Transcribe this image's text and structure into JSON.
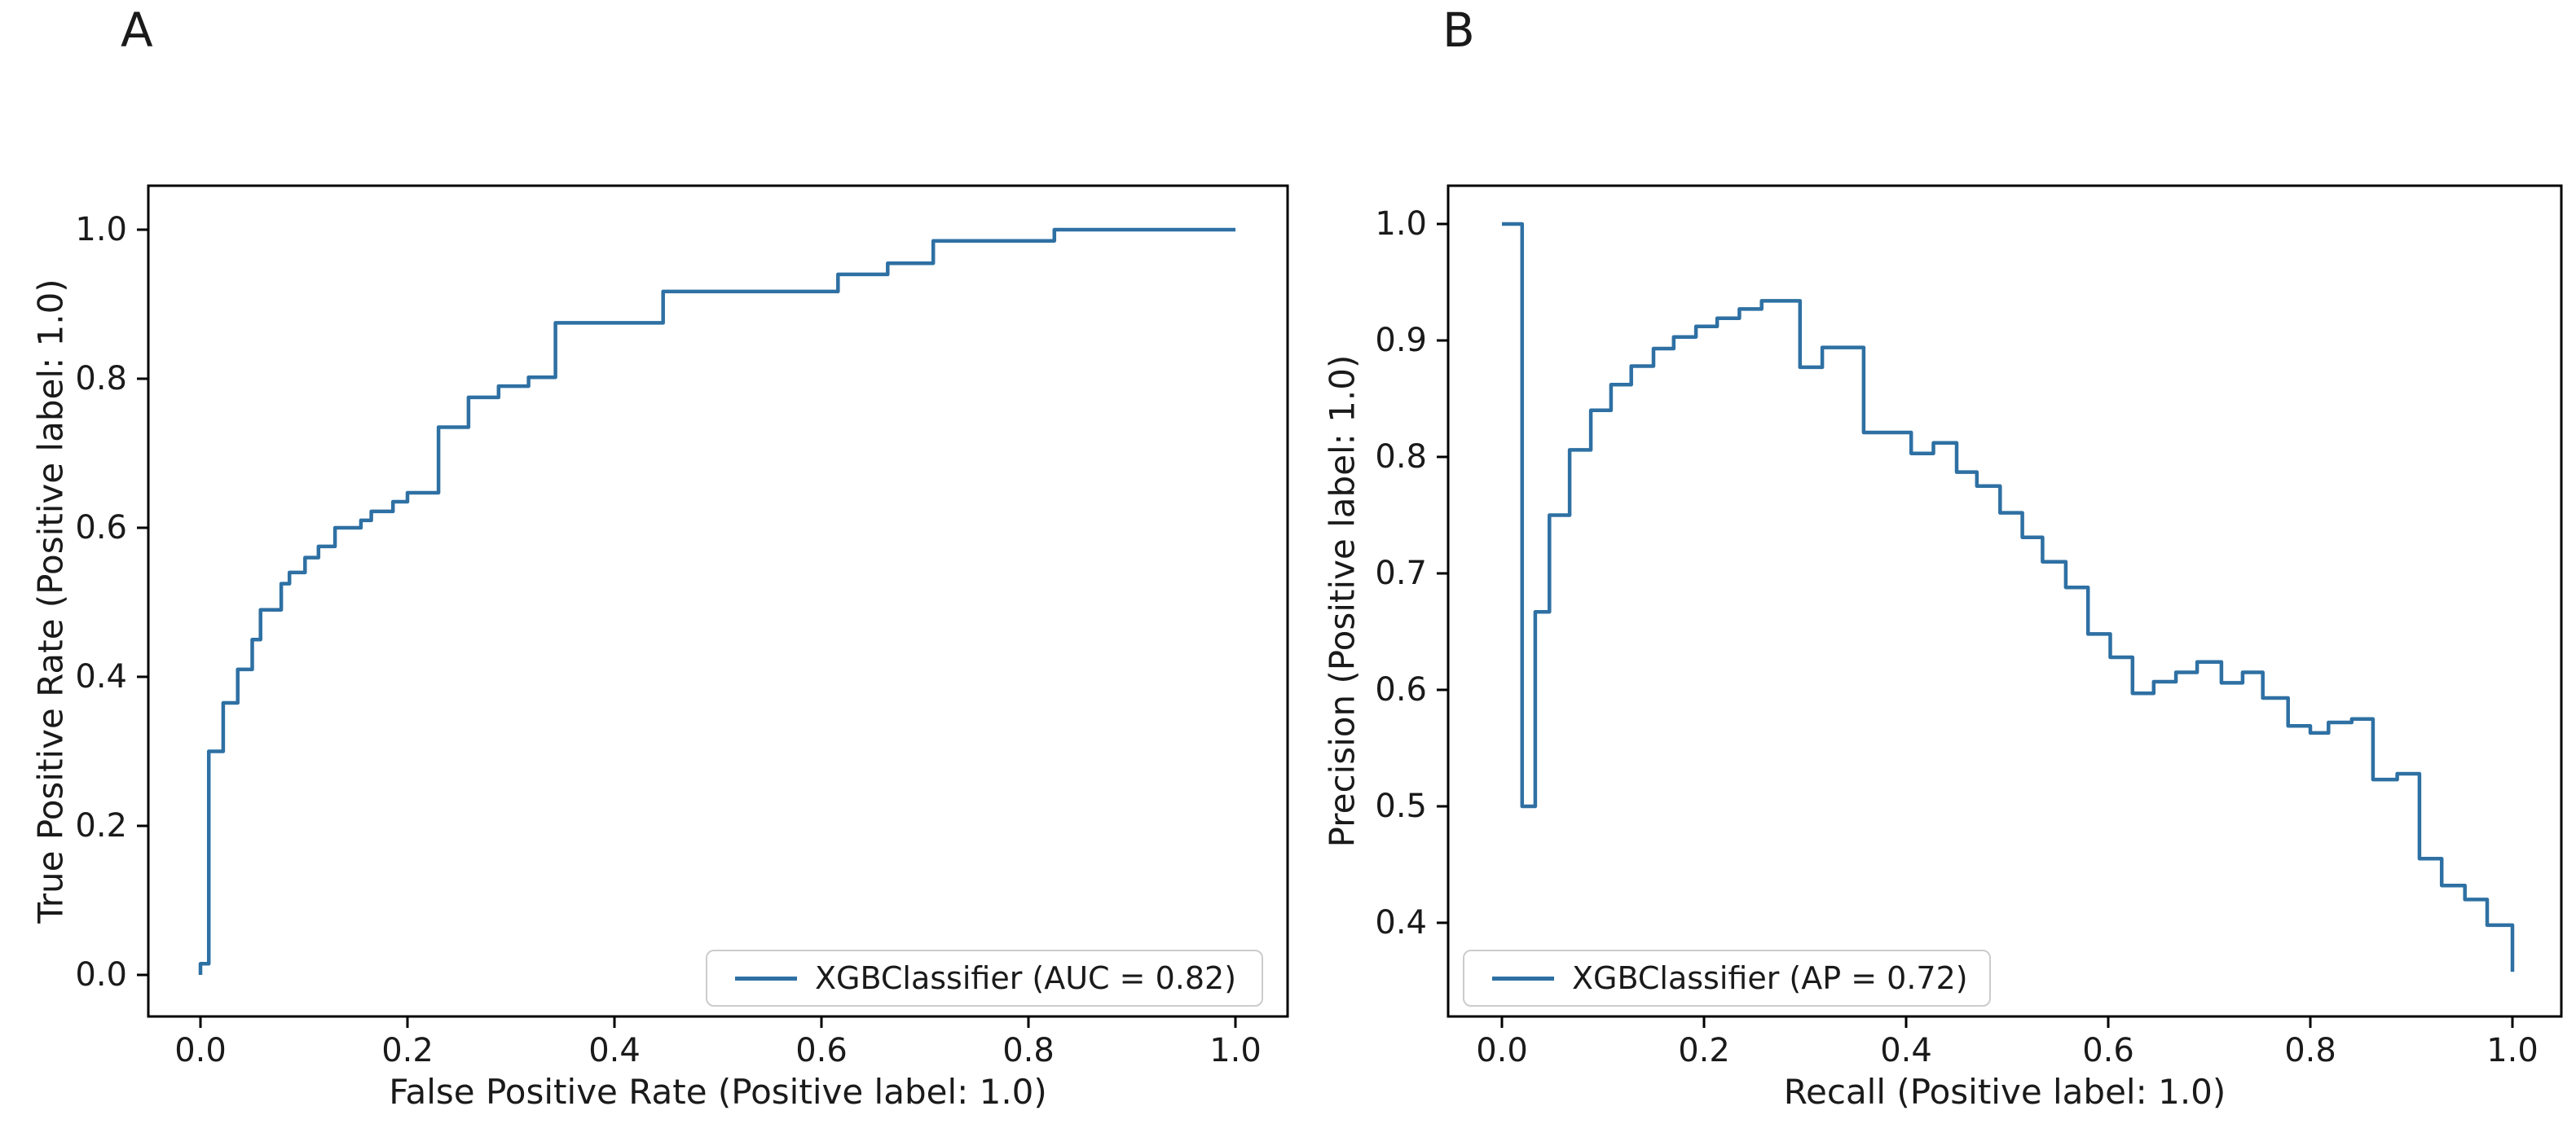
{
  "figure": {
    "background": "#ffffff"
  },
  "chart_data": [
    {
      "type": "line",
      "subtype": "roc_curve",
      "step_style": "post",
      "panel_label": "A",
      "legend_label": "XGBClassifier (AUC = 0.82)",
      "legend_position": "lower right",
      "xlabel": "False Positive Rate (Positive label: 1.0)",
      "ylabel": "True Positive Rate (Positive label: 1.0)",
      "xticks": [
        "0.0",
        "0.2",
        "0.4",
        "0.6",
        "0.8",
        "1.0"
      ],
      "yticks": [
        "0.0",
        "0.2",
        "0.4",
        "0.6",
        "0.8",
        "1.0"
      ],
      "xlim": [
        -0.05,
        1.05
      ],
      "ylim": [
        -0.05,
        1.05
      ],
      "grid": false,
      "line_color": "#2e70a3",
      "series": [
        {
          "name": "XGBClassifier",
          "metric": "AUC",
          "metric_value": 0.82,
          "points": [
            [
              0.0,
              0.0
            ],
            [
              0.0,
              0.015
            ],
            [
              0.008,
              0.3
            ],
            [
              0.022,
              0.365
            ],
            [
              0.036,
              0.41
            ],
            [
              0.05,
              0.45
            ],
            [
              0.058,
              0.49
            ],
            [
              0.078,
              0.525
            ],
            [
              0.086,
              0.54
            ],
            [
              0.101,
              0.56
            ],
            [
              0.114,
              0.575
            ],
            [
              0.13,
              0.6
            ],
            [
              0.155,
              0.61
            ],
            [
              0.165,
              0.622
            ],
            [
              0.186,
              0.635
            ],
            [
              0.2,
              0.647
            ],
            [
              0.23,
              0.735
            ],
            [
              0.259,
              0.775
            ],
            [
              0.288,
              0.79
            ],
            [
              0.317,
              0.802
            ],
            [
              0.343,
              0.875
            ],
            [
              0.447,
              0.917
            ],
            [
              0.616,
              0.94
            ],
            [
              0.664,
              0.955
            ],
            [
              0.708,
              0.985
            ],
            [
              0.825,
              1.0
            ],
            [
              1.0,
              1.0
            ]
          ]
        }
      ]
    },
    {
      "type": "line",
      "subtype": "precision_recall_curve",
      "step_style": "post",
      "panel_label": "B",
      "legend_label": "XGBClassifier (AP = 0.72)",
      "legend_position": "lower left",
      "xlabel": "Recall (Positive label: 1.0)",
      "ylabel": "Precision (Positive label: 1.0)",
      "xticks": [
        "0.0",
        "0.2",
        "0.4",
        "0.6",
        "0.8",
        "1.0"
      ],
      "yticks": [
        "0.4",
        "0.5",
        "0.6",
        "0.7",
        "0.8",
        "0.9",
        "1.0"
      ],
      "xlim": [
        -0.05,
        1.05
      ],
      "ylim": [
        0.31,
        1.04
      ],
      "grid": false,
      "line_color": "#2e70a3",
      "series": [
        {
          "name": "XGBClassifier",
          "metric": "AP",
          "metric_value": 0.72,
          "points": [
            [
              0.0,
              1.0
            ],
            [
              0.02,
              1.0
            ],
            [
              0.02,
              0.5
            ],
            [
              0.033,
              0.667
            ],
            [
              0.047,
              0.75
            ],
            [
              0.067,
              0.806
            ],
            [
              0.088,
              0.84
            ],
            [
              0.108,
              0.862
            ],
            [
              0.128,
              0.878
            ],
            [
              0.15,
              0.893
            ],
            [
              0.17,
              0.903
            ],
            [
              0.192,
              0.912
            ],
            [
              0.213,
              0.919
            ],
            [
              0.235,
              0.927
            ],
            [
              0.257,
              0.934
            ],
            [
              0.295,
              0.877
            ],
            [
              0.317,
              0.894
            ],
            [
              0.358,
              0.821
            ],
            [
              0.405,
              0.803
            ],
            [
              0.427,
              0.812
            ],
            [
              0.45,
              0.787
            ],
            [
              0.47,
              0.775
            ],
            [
              0.493,
              0.752
            ],
            [
              0.515,
              0.731
            ],
            [
              0.535,
              0.71
            ],
            [
              0.558,
              0.688
            ],
            [
              0.58,
              0.648
            ],
            [
              0.602,
              0.628
            ],
            [
              0.624,
              0.597
            ],
            [
              0.645,
              0.607
            ],
            [
              0.667,
              0.615
            ],
            [
              0.688,
              0.624
            ],
            [
              0.712,
              0.606
            ],
            [
              0.733,
              0.615
            ],
            [
              0.753,
              0.593
            ],
            [
              0.778,
              0.569
            ],
            [
              0.8,
              0.563
            ],
            [
              0.818,
              0.572
            ],
            [
              0.841,
              0.575
            ],
            [
              0.862,
              0.523
            ],
            [
              0.886,
              0.528
            ],
            [
              0.908,
              0.455
            ],
            [
              0.93,
              0.432
            ],
            [
              0.953,
              0.42
            ],
            [
              0.975,
              0.398
            ],
            [
              1.0,
              0.358
            ]
          ]
        }
      ]
    }
  ]
}
